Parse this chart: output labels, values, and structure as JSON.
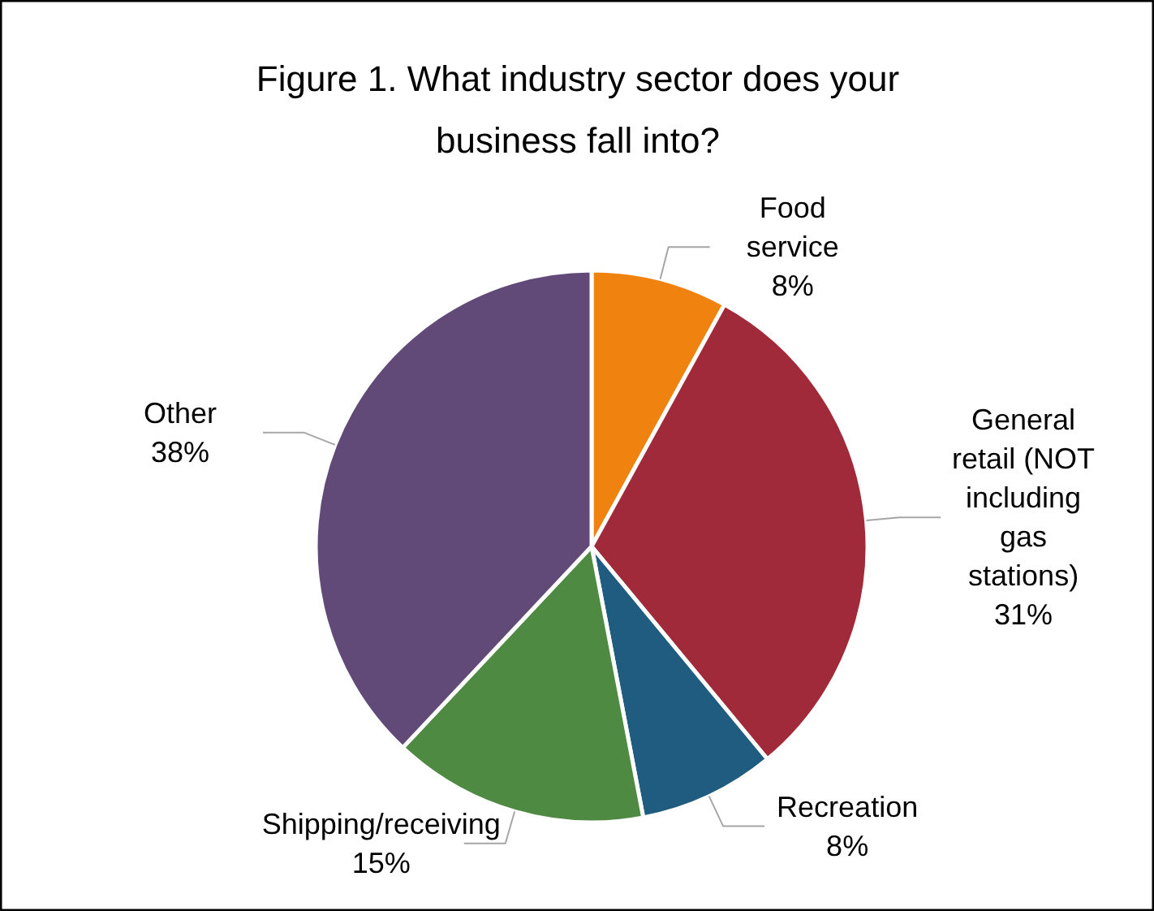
{
  "chart_data": {
    "type": "pie",
    "title": "Figure 1. What industry sector does your business fall into?",
    "categories": [
      "Food service",
      "General retail (NOT including gas stations)",
      "Recreation",
      "Shipping/receiving",
      "Other"
    ],
    "values": [
      8,
      31,
      8,
      15,
      38
    ],
    "colors": [
      "#f0820f",
      "#a12a3a",
      "#1f5c80",
      "#4e8a42",
      "#624a78"
    ],
    "value_labels": [
      "8%",
      "31%",
      "8%",
      "15%",
      "38%"
    ]
  }
}
